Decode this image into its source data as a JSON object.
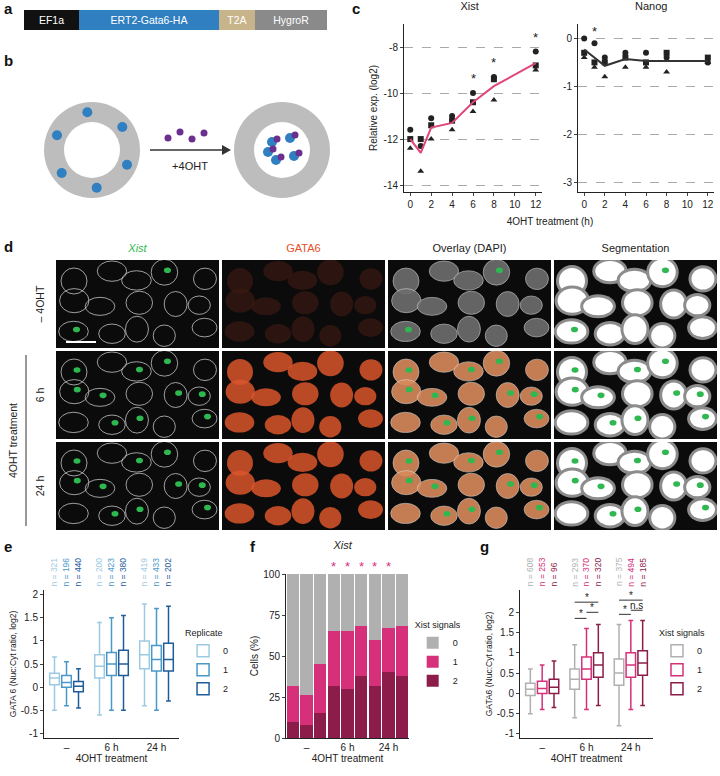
{
  "panel_a": {
    "panel": "a",
    "segments": [
      {
        "label": "EF1a",
        "color": "#111111"
      },
      {
        "label": "ERT2-Gata6-HA",
        "color": "#2f7fc1"
      },
      {
        "label": "T2A",
        "color": "#c8b48a"
      },
      {
        "label": "HygroR",
        "color": "#8a8a8a"
      }
    ]
  },
  "panel_b": {
    "panel": "b",
    "treatment": "+4OHT"
  },
  "panel_d": {
    "panel": "d",
    "columns": [
      {
        "label": "Xist",
        "color": "#2eb84f"
      },
      {
        "label": "GATA6",
        "color": "#e2502a"
      },
      {
        "label": "Overlay (DAPI)",
        "color": "#222222"
      },
      {
        "label": "Segmentation",
        "color": "#222222"
      }
    ],
    "rows": [
      "– 4OHT",
      "6 h",
      "24 h"
    ],
    "row_group": "4OHT treatment"
  },
  "chart_data": [
    {
      "panel": "c",
      "type": "scatter",
      "title": "Xist",
      "y_label": "Relative exp. (log2)",
      "x_label": "4OHT treatment (h)",
      "x": [
        0,
        1,
        2,
        4,
        6,
        8,
        12
      ],
      "series": [
        {
          "type": "scatter",
          "marker": "circle",
          "color": "#222222",
          "values": [
            -11.6,
            -12.3,
            -11.1,
            -11.0,
            -10.0,
            -9.3,
            -8.2
          ]
        },
        {
          "type": "scatter",
          "marker": "square",
          "color": "#222222",
          "values": [
            -12.0,
            -12.0,
            -11.4,
            -11.2,
            -10.4,
            -9.4,
            -8.8
          ]
        },
        {
          "type": "scatter",
          "marker": "triangle-up",
          "color": "#222222",
          "values": [
            -12.4,
            -13.4,
            -12.0,
            -11.6,
            -10.8,
            -10.3,
            -9.0
          ]
        },
        {
          "type": "line",
          "line_style": "solid",
          "color": "#e0457b",
          "values": [
            -12.0,
            -12.6,
            -11.5,
            -11.3,
            -10.4,
            -9.7,
            -8.7
          ]
        }
      ],
      "xlim": [
        -0.6,
        12.6
      ],
      "xticks": [
        0,
        2,
        4,
        6,
        8,
        10,
        12
      ],
      "ylim": [
        -14.3,
        -7
      ],
      "yticks": [
        -14,
        -12,
        -10,
        -8
      ],
      "grid": true,
      "annotations": [
        {
          "x": 6,
          "y": -9.8,
          "text": "*"
        },
        {
          "x": 8,
          "y": -9.1,
          "text": "*"
        },
        {
          "x": 12,
          "y": -8.0,
          "text": "*"
        }
      ]
    },
    {
      "panel": "c",
      "type": "scatter",
      "title": "Nanog",
      "x": [
        0,
        1,
        2,
        4,
        6,
        8,
        12
      ],
      "series": [
        {
          "type": "scatter",
          "marker": "circle",
          "color": "#222222",
          "values": [
            0.0,
            -0.1,
            -0.4,
            -0.3,
            -0.3,
            -0.4,
            -0.5
          ]
        },
        {
          "type": "scatter",
          "marker": "square",
          "color": "#222222",
          "values": [
            -0.3,
            -0.5,
            -0.5,
            -0.4,
            -0.5,
            -0.3,
            -0.4
          ]
        },
        {
          "type": "scatter",
          "marker": "triangle-up",
          "color": "#222222",
          "values": [
            -0.4,
            -0.6,
            -0.8,
            -0.6,
            -0.6,
            -0.7,
            -0.5
          ]
        },
        {
          "type": "line",
          "line_style": "solid",
          "color": "#333333",
          "values": [
            -0.23,
            -0.4,
            -0.57,
            -0.43,
            -0.47,
            -0.47,
            -0.47
          ]
        }
      ],
      "xlim": [
        -0.6,
        12.6
      ],
      "xticks": [
        0,
        2,
        4,
        6,
        8,
        10,
        12
      ],
      "ylim": [
        -3.2,
        0.3
      ],
      "yticks": [
        -3,
        -2,
        -1,
        0
      ],
      "grid": true,
      "annotations": [
        {
          "x": 1,
          "y": -0.05,
          "text": "*"
        }
      ]
    },
    {
      "panel": "e",
      "type": "box",
      "y_label": "GATA 6 (Nuc:Cyt ratio, log2)",
      "x_label": "4OHT treatment",
      "categories": [
        "–",
        "6 h",
        "24 h"
      ],
      "legend": "right",
      "legend_title": "Replicate",
      "grid": false,
      "ylim": [
        -1.1,
        2.1
      ],
      "yticks": [
        -1,
        -0.5,
        0,
        0.5,
        1,
        1.5,
        2
      ],
      "series": [
        {
          "name": "0",
          "color": "#9ecae1",
          "lower_whisker": [
            -0.5,
            -0.6,
            -0.4
          ],
          "q1": [
            0.05,
            0.2,
            0.4
          ],
          "median": [
            0.2,
            0.45,
            0.7
          ],
          "q3": [
            0.3,
            0.7,
            1.0
          ],
          "upper_whisker": [
            0.65,
            1.4,
            1.8
          ],
          "n_labels": [
            "n = 321",
            "n = 200",
            "n = 419"
          ]
        },
        {
          "name": "1",
          "color": "#4a98c9",
          "lower_whisker": [
            -0.4,
            -0.5,
            -0.5
          ],
          "q1": [
            0.0,
            0.25,
            0.35
          ],
          "median": [
            0.1,
            0.5,
            0.6
          ],
          "q3": [
            0.25,
            0.75,
            0.9
          ],
          "upper_whisker": [
            0.55,
            1.5,
            1.7
          ],
          "n_labels": [
            "n = 196",
            "n = 423",
            "n = 433"
          ]
        },
        {
          "name": "2",
          "color": "#1f5d99",
          "lower_whisker": [
            -0.45,
            -0.5,
            -0.3
          ],
          "q1": [
            -0.1,
            0.25,
            0.35
          ],
          "median": [
            0.02,
            0.5,
            0.6
          ],
          "q3": [
            0.12,
            0.8,
            0.95
          ],
          "upper_whisker": [
            0.4,
            1.55,
            1.75
          ],
          "n_labels": [
            "n = 440",
            "n = 380",
            "n = 202"
          ]
        }
      ]
    },
    {
      "panel": "f",
      "type": "bar",
      "stacked": true,
      "title": "Xist",
      "y_label": "Cells (%)",
      "x_label": "4OHT treatment",
      "categories": [
        null,
        "–",
        null,
        null,
        "6 h",
        null,
        null,
        "24 h",
        null
      ],
      "legend": "right",
      "legend_title": "Xist signals",
      "grid": false,
      "ylim": [
        0,
        100
      ],
      "yticks": [
        0,
        25,
        50,
        75,
        100
      ],
      "series": [
        {
          "name": "0",
          "color": "#b0b0b0",
          "values": [
            68,
            74,
            55,
            35,
            35,
            32,
            40,
            33,
            32
          ]
        },
        {
          "name": "1",
          "color": "#d6307a",
          "values": [
            22,
            18,
            30,
            33,
            35,
            30,
            28,
            27,
            30
          ]
        },
        {
          "name": "2",
          "color": "#8c1c4a",
          "values": [
            10,
            8,
            15,
            32,
            30,
            38,
            32,
            40,
            38
          ]
        }
      ],
      "annotations": [
        {
          "x": 3,
          "y": 100,
          "text": "*",
          "color": "#d6307a"
        },
        {
          "x": 4,
          "y": 100,
          "text": "*",
          "color": "#d6307a"
        },
        {
          "x": 5,
          "y": 100,
          "text": "*",
          "color": "#d6307a"
        },
        {
          "x": 6,
          "y": 100,
          "text": "*",
          "color": "#d6307a"
        },
        {
          "x": 7,
          "y": 100,
          "text": "*",
          "color": "#d6307a"
        }
      ]
    },
    {
      "panel": "g",
      "type": "box",
      "y_label": "GATA6 (Nuc:Cyt ratio, log2)",
      "x_label": "4OHT treatment",
      "categories": [
        "–",
        "6 h",
        "24 h"
      ],
      "legend": "right",
      "legend_title": "Xist signals",
      "grid": false,
      "ylim": [
        -1.1,
        2.55
      ],
      "yticks": [
        -1,
        -0.5,
        0,
        0.5,
        1,
        1.5,
        2
      ],
      "series": [
        {
          "name": "0",
          "color": "#b0b0b0",
          "lower_whisker": [
            -0.5,
            -0.6,
            -0.8
          ],
          "q1": [
            -0.05,
            0.1,
            0.2
          ],
          "median": [
            0.1,
            0.35,
            0.5
          ],
          "q3": [
            0.25,
            0.6,
            0.85
          ],
          "upper_whisker": [
            0.6,
            1.2,
            1.7
          ],
          "n_labels": [
            "n = 608",
            "n = 293",
            "n = 375"
          ]
        },
        {
          "name": "1",
          "color": "#d6307a",
          "lower_whisker": [
            -0.4,
            -0.4,
            -0.4
          ],
          "q1": [
            0.0,
            0.35,
            0.4
          ],
          "median": [
            0.12,
            0.6,
            0.7
          ],
          "q3": [
            0.3,
            0.9,
            1.0
          ],
          "upper_whisker": [
            0.7,
            1.6,
            1.8
          ],
          "n_labels": [
            "n = 253",
            "n = 370",
            "n = 494"
          ]
        },
        {
          "name": "2",
          "color": "#8c1c4a",
          "lower_whisker": [
            -0.35,
            -0.3,
            -0.3
          ],
          "q1": [
            0.0,
            0.4,
            0.45
          ],
          "median": [
            0.15,
            0.7,
            0.75
          ],
          "q3": [
            0.35,
            1.0,
            1.05
          ],
          "upper_whisker": [
            0.8,
            1.7,
            1.8
          ],
          "n_labels": [
            "n = 96",
            "n = 320",
            "n = 185"
          ]
        }
      ],
      "comparisons": [
        {
          "category": 1,
          "from": 0,
          "to": 1,
          "y": 1.85,
          "text": "*"
        },
        {
          "category": 1,
          "from": 1,
          "to": 2,
          "y": 2.0,
          "text": "*"
        },
        {
          "category": 1,
          "from": 0,
          "to": 2,
          "y": 2.25,
          "text": "*"
        },
        {
          "category": 2,
          "from": 0,
          "to": 1,
          "y": 1.95,
          "text": "*"
        },
        {
          "category": 2,
          "from": 1,
          "to": 2,
          "y": 2.05,
          "text": "n.s"
        },
        {
          "category": 2,
          "from": 0,
          "to": 2,
          "y": 2.3,
          "text": "*"
        }
      ]
    }
  ]
}
